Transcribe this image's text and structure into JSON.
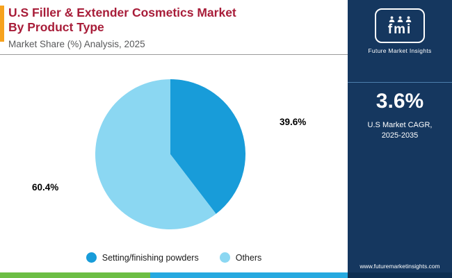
{
  "header": {
    "title_line1": "U.S Filler & Extender Cosmetics Market",
    "title_line2": "By Product Type",
    "subtitle": "Market Share (%) Analysis, 2025"
  },
  "colors": {
    "title": "#A81D39",
    "accent_bar": "#F6A21E",
    "sidebar_bg": "#15375F",
    "strip_green": "#6CBE45",
    "strip_blue": "#26A9E0",
    "strip_navy": "#0D2E52"
  },
  "chart_data": {
    "type": "pie",
    "title": "U.S Filler & Extender Cosmetics Market By Product Type",
    "subtitle": "Market Share (%) Analysis, 2025",
    "legend_position": "bottom",
    "start_angle": "12 o'clock, clockwise",
    "slices": [
      {
        "label": "Setting/finishing powders",
        "value": 39.6,
        "display": "39.6%",
        "color": "#189CD9"
      },
      {
        "label": "Others",
        "value": 60.4,
        "display": "60.4%",
        "color": "#8BD7F2"
      }
    ]
  },
  "legend": {
    "items": [
      {
        "label": "Setting/finishing powders",
        "color": "#189CD9"
      },
      {
        "label": "Others",
        "color": "#8BD7F2"
      }
    ]
  },
  "sidebar": {
    "logo_text": "fmi",
    "logo_caption": "Future Market Insights",
    "cagr_value": "3.6%",
    "cagr_line1": "U.S Market CAGR,",
    "cagr_line2": "2025-2035",
    "website": "www.futuremarketinsights.com"
  }
}
